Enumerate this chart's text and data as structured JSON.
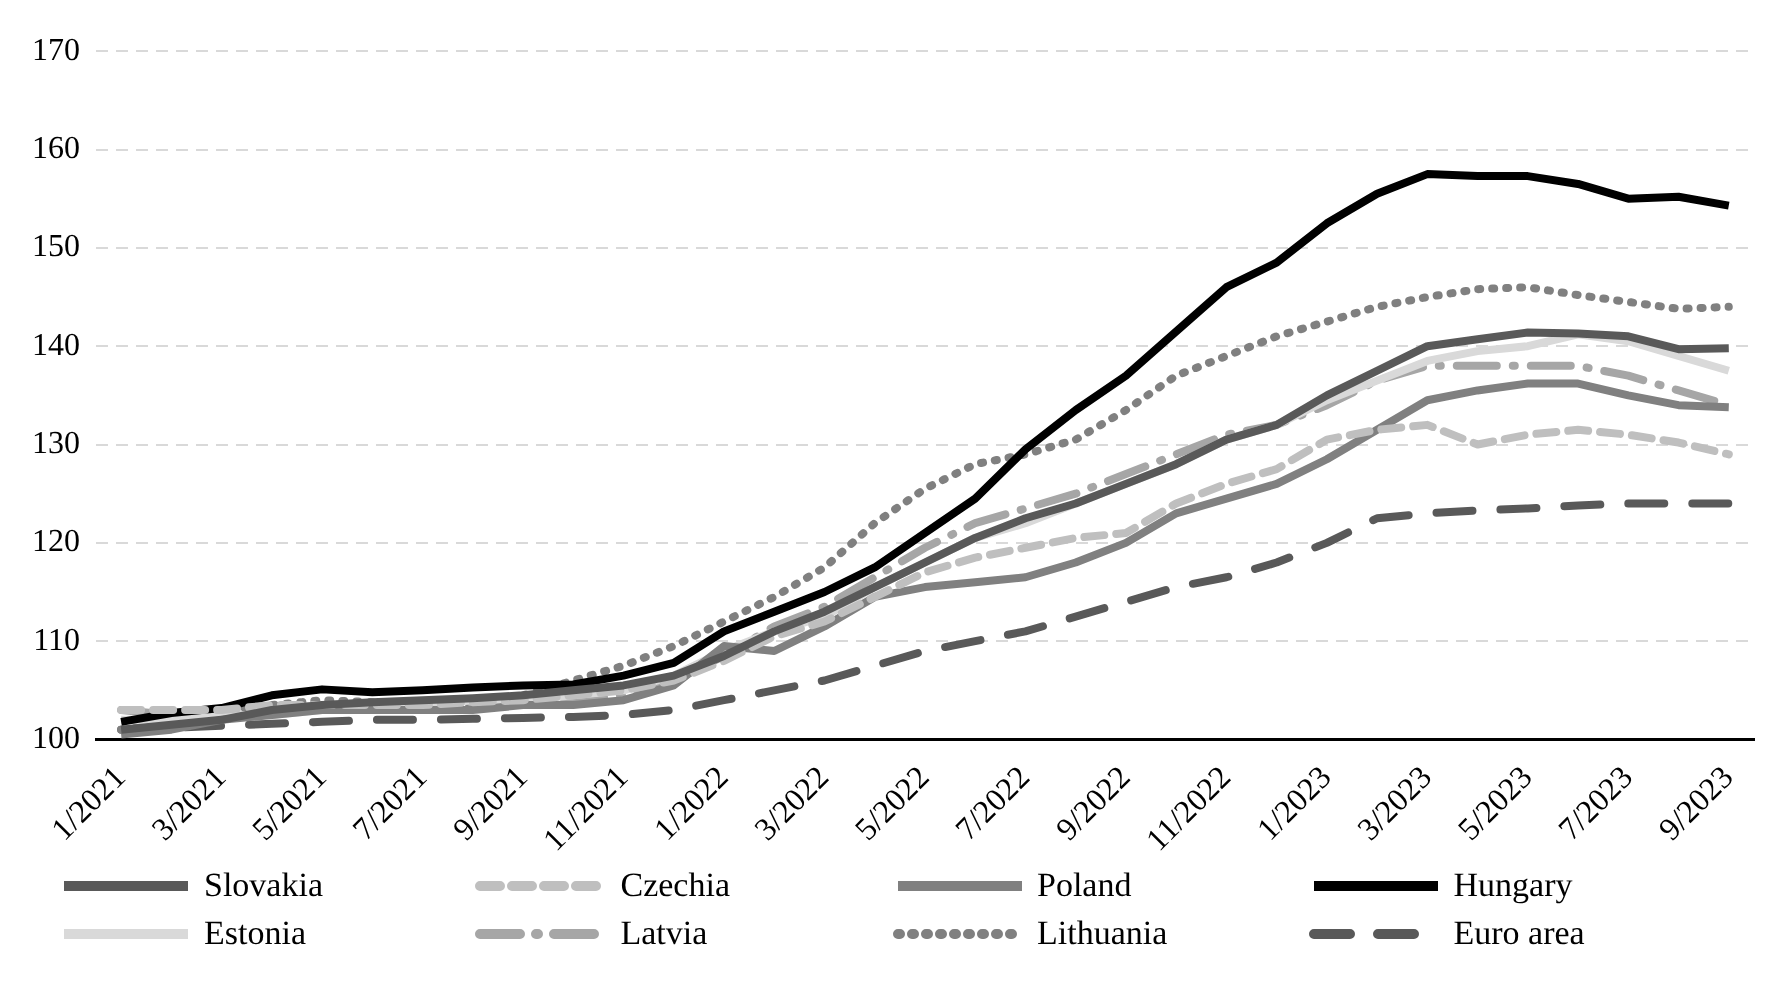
{
  "chart_data": {
    "type": "line",
    "categories": [
      "1/2021",
      null,
      "3/2021",
      null,
      "5/2021",
      null,
      "7/2021",
      null,
      "9/2021",
      null,
      "11/2021",
      null,
      "1/2022",
      null,
      "3/2022",
      null,
      "5/2022",
      null,
      "7/2022",
      null,
      "9/2022",
      null,
      "11/2022",
      null,
      "1/2023",
      null,
      "3/2023",
      null,
      "5/2023",
      null,
      "7/2023",
      null,
      "9/2023"
    ],
    "ylim": [
      100,
      170
    ],
    "yticks": [
      100,
      110,
      120,
      130,
      140,
      150,
      160,
      170
    ],
    "grid": "y",
    "legend": "bottom",
    "marker": "none",
    "series": [
      {
        "name": "Slovakia",
        "color": "#595959",
        "line_style": "solid",
        "values": [
          101,
          101.5,
          102,
          103,
          103.5,
          103.8,
          104,
          104.2,
          104.5,
          105,
          105.5,
          106.5,
          108.5,
          111,
          113,
          115.5,
          118,
          120.5,
          122.5,
          124,
          126,
          128,
          130.5,
          132,
          135,
          137.5,
          140,
          140.7,
          141.4,
          141.3,
          141,
          139.7,
          139.8
        ]
      },
      {
        "name": "Czechia",
        "color": "#bfbfbf",
        "line_style": "dashed",
        "values": [
          103,
          103,
          103,
          103.5,
          103.5,
          103.5,
          103.5,
          103.8,
          104,
          104.5,
          105,
          106,
          108,
          110.5,
          112,
          114.5,
          117,
          118.5,
          119.5,
          120.5,
          121,
          124,
          126,
          127.5,
          130.5,
          131.5,
          132,
          130,
          131,
          131.5,
          131,
          130.2,
          129
        ]
      },
      {
        "name": "Poland",
        "color": "#808080",
        "line_style": "solid",
        "values": [
          100.5,
          101,
          102,
          102.5,
          103,
          103,
          103,
          103,
          103.5,
          103.5,
          104,
          105.5,
          109.5,
          109,
          111.5,
          114.5,
          115.5,
          116,
          116.5,
          118,
          120,
          123,
          124.5,
          126,
          128.5,
          131.5,
          134.5,
          135.5,
          136.2,
          136.2,
          135,
          134,
          133.8
        ]
      },
      {
        "name": "Hungary",
        "color": "#000000",
        "line_style": "solid",
        "values": [
          101.8,
          102.7,
          103.2,
          104.5,
          105.1,
          104.8,
          105,
          105.3,
          105.5,
          105.6,
          106.5,
          107.8,
          111,
          113,
          115,
          117.5,
          121,
          124.5,
          129.5,
          133.5,
          137,
          141.5,
          146,
          148.5,
          152.5,
          155.5,
          157.5,
          157.3,
          157.3,
          156.5,
          155,
          155.2,
          154.3
        ]
      },
      {
        "name": "Estonia",
        "color": "#d9d9d9",
        "line_style": "solid",
        "values": [
          102,
          102,
          102.5,
          102.5,
          103,
          103,
          103.5,
          104,
          104,
          104.5,
          105,
          106.5,
          109,
          111,
          112.5,
          115.5,
          118,
          120.5,
          122,
          124,
          126,
          128,
          130.5,
          132,
          134.5,
          136.5,
          138.5,
          139.5,
          140,
          141.2,
          140.5,
          139,
          137.5
        ]
      },
      {
        "name": "Latvia",
        "color": "#a6a6a6",
        "line_style": "dashdot",
        "values": [
          103,
          102.5,
          102.5,
          103,
          103.5,
          103.5,
          103.5,
          103.5,
          104,
          104,
          104.5,
          106,
          108.5,
          111.5,
          113.5,
          116.5,
          119.5,
          122,
          123.5,
          125,
          127,
          129,
          131,
          132,
          134,
          136.5,
          138,
          138,
          138,
          138,
          137,
          135.5,
          134
        ]
      },
      {
        "name": "Lithuania",
        "color": "#808080",
        "line_style": "dotted",
        "values": [
          101,
          101.5,
          103,
          103.5,
          104,
          103.8,
          103.5,
          103.8,
          104.5,
          106,
          107.5,
          109.5,
          112,
          114.5,
          117.5,
          122,
          125.5,
          128,
          129,
          130.5,
          133.5,
          137,
          139,
          141,
          142.5,
          144,
          145,
          145.8,
          146,
          145.2,
          144.5,
          143.8,
          144
        ]
      },
      {
        "name": "Euro area",
        "color": "#595959",
        "line_style": "longdash",
        "values": [
          101,
          101.2,
          101.4,
          101.6,
          101.8,
          102,
          102,
          102.1,
          102.2,
          102.3,
          102.5,
          103,
          104,
          105,
          106,
          107.5,
          109,
          110,
          111,
          112.5,
          114,
          115.5,
          116.5,
          118,
          120,
          122.5,
          123,
          123.3,
          123.5,
          123.8,
          124,
          124,
          124
        ]
      }
    ]
  }
}
